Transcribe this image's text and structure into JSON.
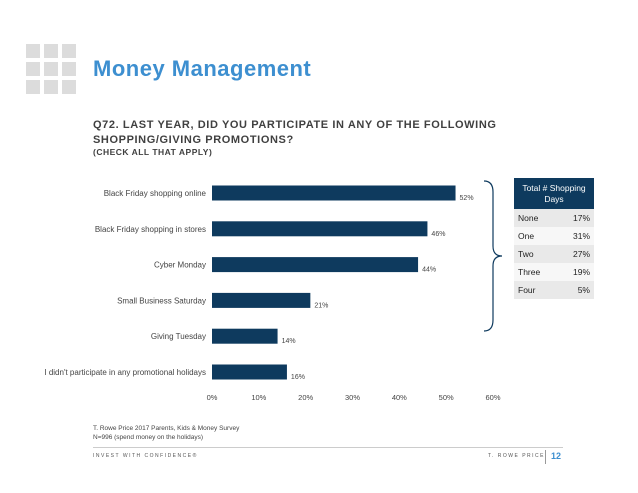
{
  "header": {
    "title": "Money Management",
    "question": "Q72. LAST YEAR, DID YOU PARTICIPATE IN ANY OF THE FOLLOWING SHOPPING/GIVING PROMOTIONS?",
    "subtitle": "(CHECK ALL THAT APPLY)"
  },
  "colors": {
    "bar": "#0e3a5e",
    "accent": "#3d8fd0"
  },
  "chart_data": {
    "type": "bar",
    "orientation": "horizontal",
    "categories": [
      "Black Friday shopping online",
      "Black Friday shopping in stores",
      "Cyber Monday",
      "Small Business Saturday",
      "Giving Tuesday",
      "I didn't participate in any promotional holidays"
    ],
    "values": [
      52,
      46,
      44,
      21,
      14,
      16
    ],
    "value_labels": [
      "52%",
      "46%",
      "44%",
      "21%",
      "14%",
      "16%"
    ],
    "xlim": [
      0,
      60
    ],
    "xticks": [
      "0%",
      "10%",
      "20%",
      "30%",
      "40%",
      "50%",
      "60%"
    ],
    "grid": false
  },
  "side_table": {
    "header": "Total # Shopping Days",
    "rows": [
      {
        "label": "None",
        "value": "17%"
      },
      {
        "label": "One",
        "value": "31%"
      },
      {
        "label": "Two",
        "value": "27%"
      },
      {
        "label": "Three",
        "value": "19%"
      },
      {
        "label": "Four",
        "value": "5%"
      }
    ]
  },
  "footer": {
    "source_line1": "T. Rowe Price 2017 Parents, Kids & Money Survey",
    "source_line2": "N=996 (spend money on the holidays)",
    "tagline": "INVEST WITH CONFIDENCE®",
    "brand": "T. ROWE PRICE",
    "page_number": "12"
  }
}
